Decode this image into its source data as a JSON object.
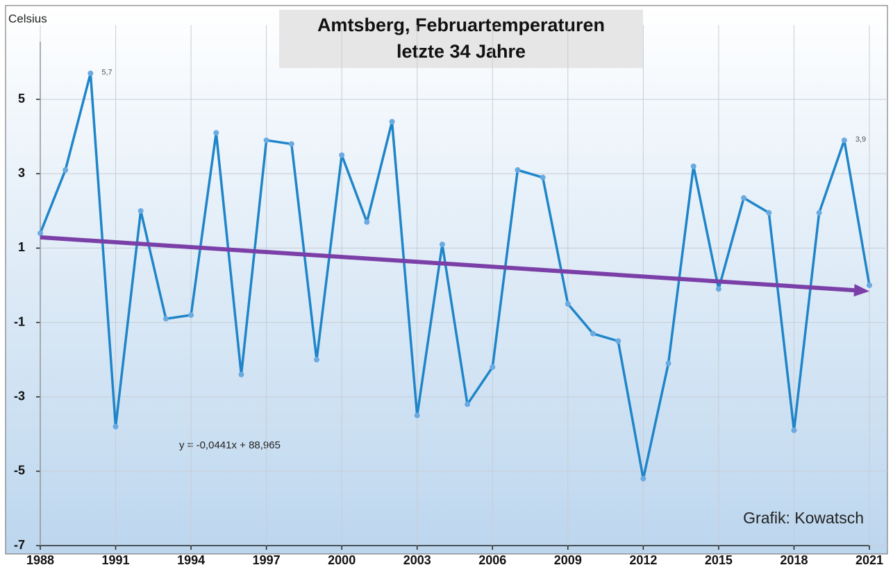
{
  "chart_data": {
    "type": "line",
    "title": [
      "Amtsberg, Februartemperaturen",
      "letzte 34 Jahre"
    ],
    "y_label": "Celsius",
    "credit": "Grafik: Kowatsch",
    "x": [
      1988,
      1989,
      1990,
      1991,
      1992,
      1993,
      1994,
      1995,
      1996,
      1997,
      1998,
      1999,
      2000,
      2001,
      2002,
      2003,
      2004,
      2005,
      2006,
      2007,
      2008,
      2009,
      2010,
      2011,
      2012,
      2013,
      2014,
      2015,
      2016,
      2017,
      2018,
      2019,
      2020,
      2021
    ],
    "series": [
      {
        "color": "#1f85c9",
        "values": [
          1.4,
          3.1,
          5.7,
          -3.8,
          2.0,
          -0.9,
          -0.8,
          4.1,
          -2.4,
          3.9,
          3.8,
          -2.0,
          3.5,
          1.7,
          4.4,
          -3.5,
          1.1,
          -3.2,
          -2.2,
          3.1,
          2.9,
          -0.5,
          -1.3,
          -1.5,
          -5.2,
          -2.1,
          3.2,
          -0.1,
          2.35,
          1.95,
          -3.9,
          1.95,
          3.9,
          0.0
        ],
        "value_labels": [
          null,
          null,
          "5,7",
          null,
          null,
          null,
          null,
          null,
          null,
          null,
          null,
          null,
          null,
          null,
          null,
          null,
          null,
          null,
          null,
          null,
          null,
          null,
          null,
          null,
          null,
          null,
          null,
          null,
          null,
          null,
          null,
          null,
          "3,9",
          null
        ]
      }
    ],
    "trend": {
      "label": "y = -0,0441x + 88,965",
      "color": "#7b3fa8",
      "x": [
        1988,
        2021
      ],
      "values": [
        1.29,
        -0.16
      ]
    },
    "xlim": [
      1988,
      2021
    ],
    "xticks": [
      1988,
      1991,
      1994,
      1997,
      2000,
      2003,
      2006,
      2009,
      2012,
      2015,
      2018,
      2021
    ],
    "ylim": [
      -7,
      7
    ],
    "yticks": [
      -7,
      -5,
      -3,
      -1,
      1,
      3,
      5
    ],
    "grid": true
  }
}
